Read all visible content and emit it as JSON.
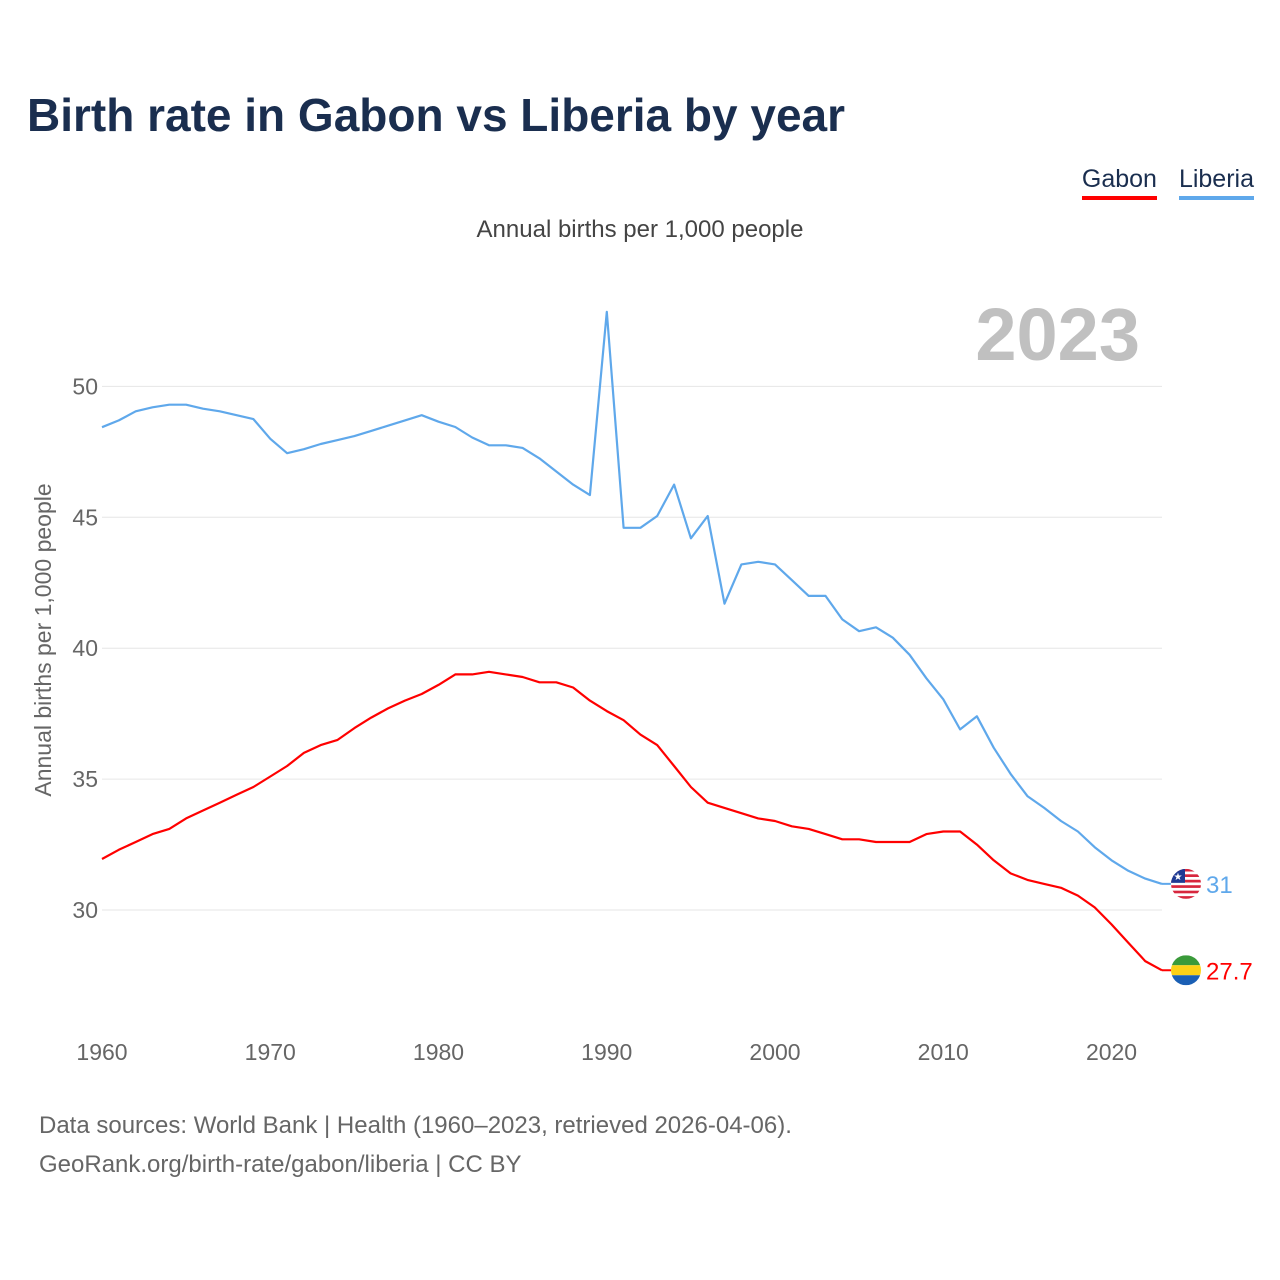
{
  "title": "Birth rate in Gabon vs Liberia by year",
  "subtitle": "Annual births per 1,000 people",
  "footer": {
    "line1": "Data sources: World Bank | Health (1960–2023, retrieved 2026-04-06).",
    "line2": "GeoRank.org/birth-rate/gabon/liberia | CC BY"
  },
  "chart_data": {
    "type": "line",
    "title": "Birth rate in Gabon vs Liberia by year",
    "xlabel": "",
    "ylabel": "Annual births per 1,000 people",
    "year_label": "2023",
    "xlim": [
      1960,
      2023
    ],
    "ylim": [
      25.8,
      53.3
    ],
    "x_ticks": [
      1960,
      1970,
      1980,
      1990,
      2000,
      2010,
      2020
    ],
    "y_ticks": [
      30,
      35,
      40,
      45,
      50
    ],
    "grid": true,
    "legend_position": "top-right",
    "x": [
      1960,
      1961,
      1962,
      1963,
      1964,
      1965,
      1966,
      1967,
      1968,
      1969,
      1970,
      1971,
      1972,
      1973,
      1974,
      1975,
      1976,
      1977,
      1978,
      1979,
      1980,
      1981,
      1982,
      1983,
      1984,
      1985,
      1986,
      1987,
      1988,
      1989,
      1990,
      1991,
      1992,
      1993,
      1994,
      1995,
      1996,
      1997,
      1998,
      1999,
      2000,
      2001,
      2002,
      2003,
      2004,
      2005,
      2006,
      2007,
      2008,
      2009,
      2010,
      2011,
      2012,
      2013,
      2014,
      2015,
      2016,
      2017,
      2018,
      2019,
      2020,
      2021,
      2022,
      2023
    ],
    "series": [
      {
        "name": "Gabon",
        "color": "#ff0000",
        "end_label": "27.7",
        "values": [
          31.95,
          32.3,
          32.6,
          32.9,
          33.1,
          33.5,
          33.8,
          34.1,
          34.4,
          34.7,
          35.1,
          35.5,
          36.0,
          36.3,
          36.5,
          36.95,
          37.35,
          37.7,
          38.0,
          38.25,
          38.6,
          39.0,
          39.0,
          39.1,
          39.0,
          38.9,
          38.7,
          38.7,
          38.5,
          38.0,
          37.6,
          37.25,
          36.7,
          36.3,
          35.5,
          34.7,
          34.1,
          33.9,
          33.7,
          33.5,
          33.4,
          33.2,
          33.1,
          32.9,
          32.7,
          32.7,
          32.6,
          32.6,
          32.6,
          32.9,
          33.0,
          33.0,
          32.5,
          31.9,
          31.4,
          31.15,
          31.0,
          30.85,
          30.55,
          30.1,
          29.45,
          28.75,
          28.05,
          27.7
        ]
      },
      {
        "name": "Liberia",
        "color": "#5fa8eb",
        "end_label": "31",
        "values": [
          48.44,
          48.7,
          49.05,
          49.2,
          49.3,
          49.3,
          49.15,
          49.05,
          48.9,
          48.75,
          48.0,
          47.45,
          47.6,
          47.8,
          47.95,
          48.1,
          48.3,
          48.5,
          48.7,
          48.9,
          48.65,
          48.45,
          48.05,
          47.75,
          47.75,
          47.65,
          47.25,
          46.75,
          46.25,
          45.85,
          52.85,
          44.6,
          44.6,
          45.05,
          46.25,
          44.2,
          45.05,
          41.7,
          43.2,
          43.3,
          43.2,
          42.6,
          42.0,
          42.0,
          41.1,
          40.65,
          40.8,
          40.4,
          39.75,
          38.85,
          38.05,
          36.9,
          37.4,
          36.2,
          35.2,
          34.35,
          33.9,
          33.4,
          33.0,
          32.4,
          31.9,
          31.5,
          31.2,
          31.0
        ]
      }
    ]
  }
}
